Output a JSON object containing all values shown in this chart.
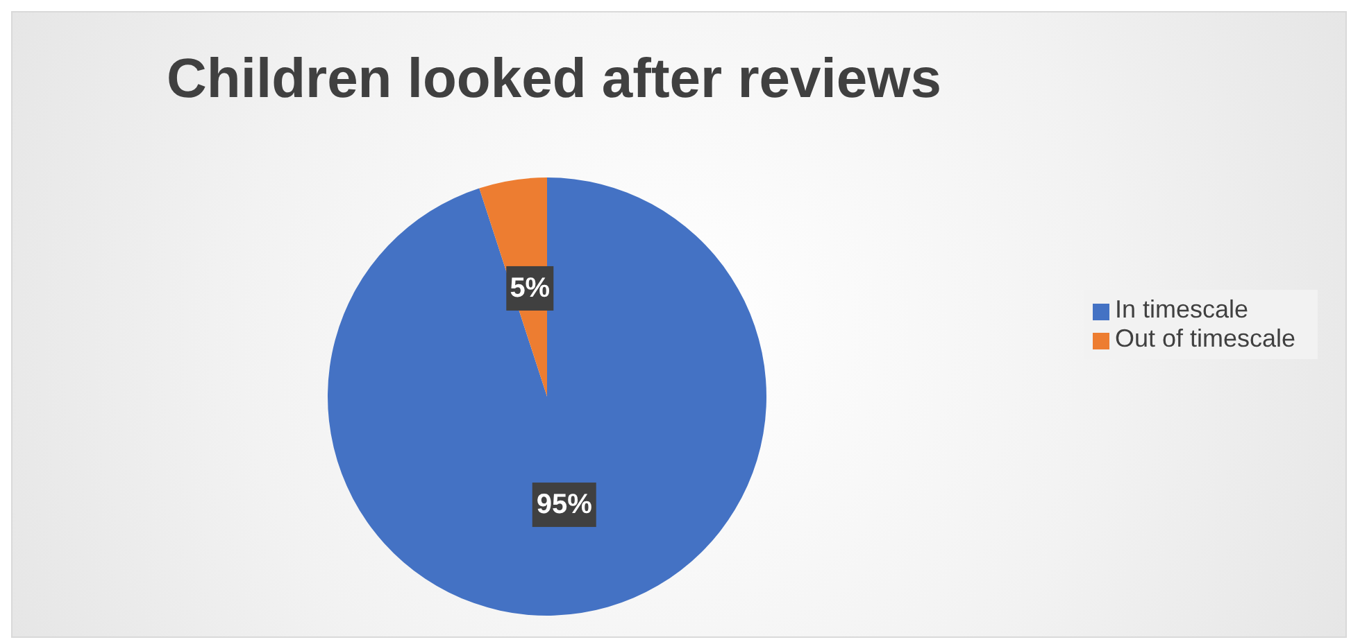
{
  "chart_data": {
    "type": "pie",
    "title": "Children looked after reviews",
    "categories": [
      "In timescale",
      "Out of timescale"
    ],
    "values": [
      95,
      5
    ],
    "colors": [
      "#4472c4",
      "#ed7d31"
    ],
    "value_labels": [
      "95%",
      "5%"
    ],
    "legend": "right"
  }
}
